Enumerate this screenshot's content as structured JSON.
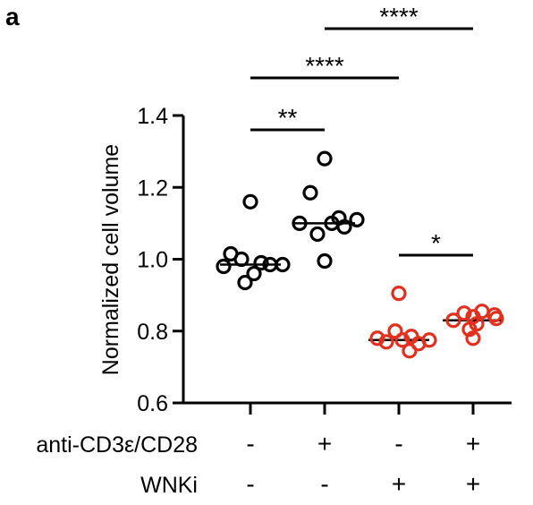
{
  "panel_label": "a",
  "chart_data": {
    "type": "scatter",
    "ylabel": "Normalized cell volume",
    "xlabel": "",
    "ylim": [
      0.6,
      1.4
    ],
    "yticks": [
      "0.6",
      "0.8",
      "1.0",
      "1.2",
      "1.4"
    ],
    "ytick_values": [
      0.6,
      0.8,
      1.0,
      1.2,
      1.4
    ],
    "groups": [
      {
        "color": "#000000",
        "median": 0.985,
        "values": [
          1.16,
          1.015,
          1.0,
          0.99,
          0.985,
          0.985,
          0.98,
          0.96,
          0.935
        ]
      },
      {
        "color": "#000000",
        "median": 1.1,
        "values": [
          1.28,
          1.185,
          1.115,
          1.11,
          1.1,
          1.1,
          1.09,
          1.07,
          0.995
        ]
      },
      {
        "color": "#e0301e",
        "median": 0.775,
        "values": [
          0.905,
          0.8,
          0.785,
          0.78,
          0.775,
          0.775,
          0.77,
          0.765,
          0.745
        ]
      },
      {
        "color": "#e0301e",
        "median": 0.83,
        "values": [
          0.855,
          0.85,
          0.845,
          0.84,
          0.835,
          0.83,
          0.82,
          0.805,
          0.78
        ]
      }
    ],
    "significance": [
      {
        "from": 0,
        "to": 1,
        "label": "**"
      },
      {
        "from": 0,
        "to": 2,
        "label": "****"
      },
      {
        "from": 1,
        "to": 3,
        "label": "****"
      },
      {
        "from": 2,
        "to": 3,
        "label": "*"
      }
    ],
    "conditions": [
      {
        "label": "anti-CD3ε/CD28",
        "values": [
          "-",
          "+",
          "-",
          "+"
        ]
      },
      {
        "label": "WNKi",
        "values": [
          "-",
          "-",
          "+",
          "+"
        ]
      }
    ]
  }
}
